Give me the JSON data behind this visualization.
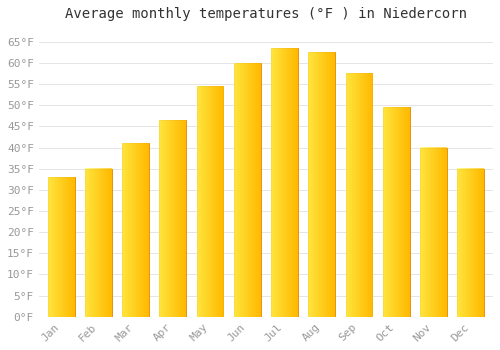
{
  "title": "Average monthly temperatures (°F ) in Niedercorn",
  "months": [
    "Jan",
    "Feb",
    "Mar",
    "Apr",
    "May",
    "Jun",
    "Jul",
    "Aug",
    "Sep",
    "Oct",
    "Nov",
    "Dec"
  ],
  "values": [
    33,
    35,
    41,
    46.5,
    54.5,
    60,
    63.5,
    62.5,
    57.5,
    49.5,
    40,
    35
  ],
  "bar_color_main": "#FFAA00",
  "bar_color_light": "#FFD966",
  "bar_edge_color": "#E08800",
  "ylim": [
    0,
    68
  ],
  "yticks": [
    0,
    5,
    10,
    15,
    20,
    25,
    30,
    35,
    40,
    45,
    50,
    55,
    60,
    65
  ],
  "ytick_labels": [
    "0°F",
    "5°F",
    "10°F",
    "15°F",
    "20°F",
    "25°F",
    "30°F",
    "35°F",
    "40°F",
    "45°F",
    "50°F",
    "55°F",
    "60°F",
    "65°F"
  ],
  "background_color": "#ffffff",
  "grid_color": "#e0e0e0",
  "title_fontsize": 10,
  "tick_fontsize": 8,
  "tick_color": "#999999",
  "font_family": "monospace"
}
